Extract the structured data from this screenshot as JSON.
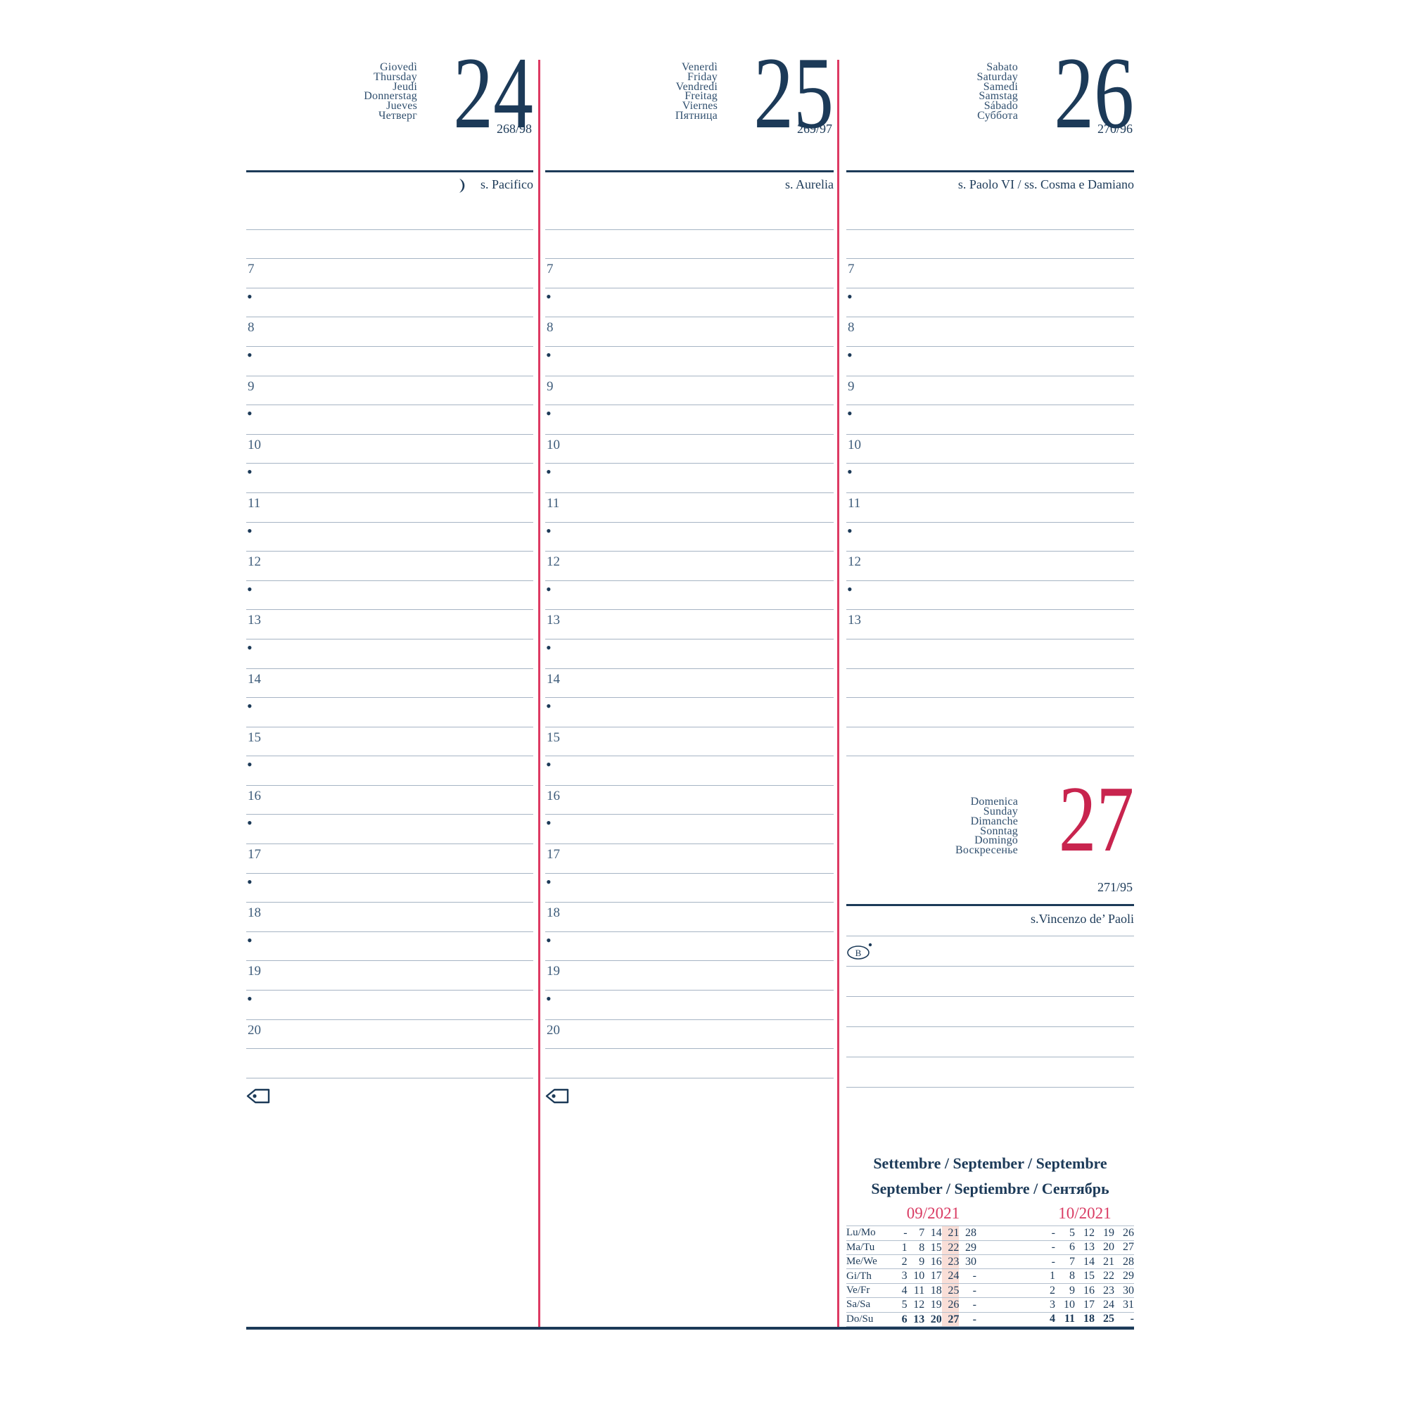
{
  "colors": {
    "navy": "#1c3a58",
    "accent_red": "#dd3a63",
    "sunday_red": "#c8244e",
    "line_blue": "#a6b4c4",
    "highlight_pink": "#f9ded7"
  },
  "bullet": "•",
  "days": [
    {
      "names": [
        "Giovedì",
        "Thursday",
        "Jeudi",
        "Donnerstag",
        "Jueves",
        "Четверг"
      ],
      "number": "24",
      "ordinal": "268/98",
      "saint": "s. Pacifico",
      "moon_icon": "last-quarter-moon",
      "hours": [
        "7",
        "8",
        "9",
        "10",
        "11",
        "12",
        "13",
        "14",
        "15",
        "16",
        "17",
        "18",
        "19",
        "20"
      ]
    },
    {
      "names": [
        "Venerdì",
        "Friday",
        "Vendredi",
        "Freitag",
        "Viernes",
        "Пятница"
      ],
      "number": "25",
      "ordinal": "269/97",
      "saint": "s. Aurelia",
      "hours": [
        "7",
        "8",
        "9",
        "10",
        "11",
        "12",
        "13",
        "14",
        "15",
        "16",
        "17",
        "18",
        "19",
        "20"
      ]
    },
    {
      "names": [
        "Sabato",
        "Saturday",
        "Samedi",
        "Samstag",
        "Sábado",
        "Суббота"
      ],
      "number": "26",
      "ordinal": "270/96",
      "saint": "s. Paolo VI / ss. Cosma e Damiano",
      "hours": [
        "7",
        "8",
        "9",
        "10",
        "11",
        "12",
        "13"
      ]
    }
  ],
  "sunday": {
    "names": [
      "Domenica",
      "Sunday",
      "Dimanche",
      "Sonntag",
      "Domingo",
      "Воскресенье"
    ],
    "number": "27",
    "ordinal": "271/95",
    "saint": "s.Vincenzo de’ Paoli",
    "symbol": "B"
  },
  "calendar": {
    "title_line1": "Settembre / September / Septembre",
    "title_line2": "September / Septiembre / Сентябрь",
    "months": [
      {
        "label": "09/2021"
      },
      {
        "label": "10/2021"
      }
    ],
    "highlight_column_index": 3,
    "rows": [
      {
        "label": "Lu/Mo",
        "september": [
          "-",
          "7",
          "14",
          "21",
          "28"
        ],
        "october": [
          "-",
          "5",
          "12",
          "19",
          "26"
        ]
      },
      {
        "label": "Ma/Tu",
        "september": [
          "1",
          "8",
          "15",
          "22",
          "29"
        ],
        "october": [
          "-",
          "6",
          "13",
          "20",
          "27"
        ]
      },
      {
        "label": "Me/We",
        "september": [
          "2",
          "9",
          "16",
          "23",
          "30"
        ],
        "october": [
          "-",
          "7",
          "14",
          "21",
          "28"
        ]
      },
      {
        "label": "Gi/Th",
        "september": [
          "3",
          "10",
          "17",
          "24",
          "-"
        ],
        "october": [
          "1",
          "8",
          "15",
          "22",
          "29"
        ]
      },
      {
        "label": "Ve/Fr",
        "september": [
          "4",
          "11",
          "18",
          "25",
          "-"
        ],
        "october": [
          "2",
          "9",
          "16",
          "23",
          "30"
        ]
      },
      {
        "label": "Sa/Sa",
        "september": [
          "5",
          "12",
          "19",
          "26",
          "-"
        ],
        "october": [
          "3",
          "10",
          "17",
          "24",
          "31"
        ]
      },
      {
        "label": "Do/Su",
        "september": [
          "6",
          "13",
          "20",
          "27",
          "-"
        ],
        "october": [
          "4",
          "11",
          "18",
          "25",
          "-"
        ]
      }
    ]
  }
}
